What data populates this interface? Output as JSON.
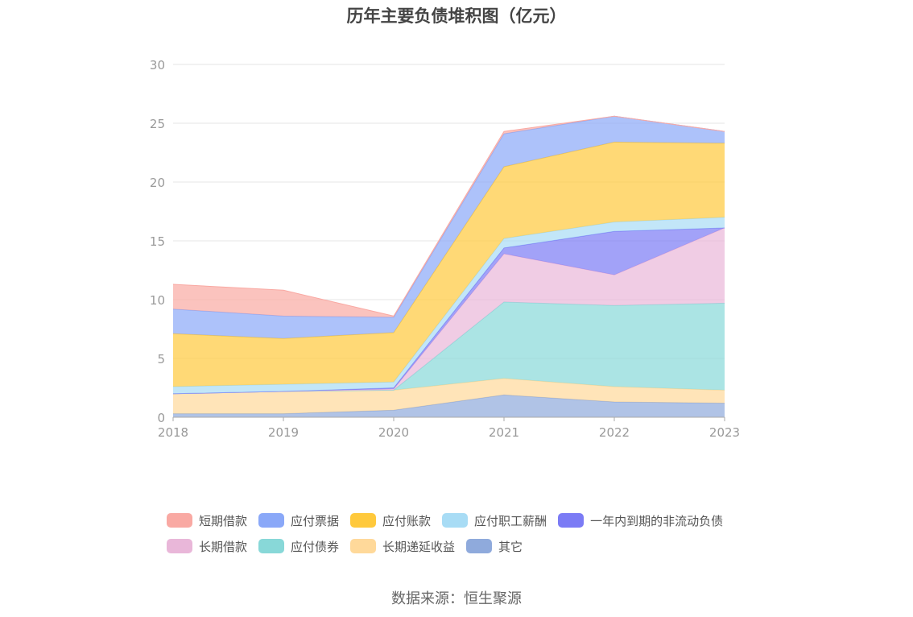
{
  "chart_data": {
    "type": "area",
    "stacked": true,
    "title": "历年主要负债堆积图（亿元）",
    "xlabel": "",
    "ylabel": "",
    "categories": [
      "2018",
      "2019",
      "2020",
      "2021",
      "2022",
      "2023"
    ],
    "ylim": [
      0,
      30
    ],
    "yticks": [
      0,
      5,
      10,
      15,
      20,
      25,
      30
    ],
    "grid": true,
    "legend_position": "bottom",
    "series": [
      {
        "name": "其它",
        "color": "#8FAADC",
        "values": [
          0.3,
          0.3,
          0.6,
          1.9,
          1.3,
          1.2
        ]
      },
      {
        "name": "长期递延收益",
        "color": "#FFD99A",
        "values": [
          1.7,
          1.9,
          1.7,
          1.4,
          1.3,
          1.1
        ]
      },
      {
        "name": "应付债券",
        "color": "#88D8D8",
        "values": [
          0.0,
          0.0,
          0.0,
          6.5,
          6.9,
          7.4
        ]
      },
      {
        "name": "长期借款",
        "color": "#E9B7D9",
        "values": [
          0.0,
          0.0,
          0.1,
          4.1,
          2.6,
          6.4
        ]
      },
      {
        "name": "一年内到期的非流动负债",
        "color": "#7B7BF5",
        "values": [
          0.0,
          0.0,
          0.1,
          0.5,
          3.7,
          0.0
        ]
      },
      {
        "name": "应付职工薪酬",
        "color": "#A8DCF5",
        "values": [
          0.6,
          0.6,
          0.5,
          0.8,
          0.8,
          0.9
        ]
      },
      {
        "name": "应付账款",
        "color": "#FFC93C",
        "values": [
          4.5,
          3.9,
          4.2,
          6.1,
          6.8,
          6.3
        ]
      },
      {
        "name": "应付票据",
        "color": "#8AA8F8",
        "values": [
          2.1,
          1.9,
          1.3,
          2.8,
          2.2,
          1.0
        ]
      },
      {
        "name": "短期借款",
        "color": "#F9A9A3",
        "values": [
          2.1,
          2.2,
          0.1,
          0.2,
          0.0,
          0.0
        ]
      }
    ]
  },
  "legend": [
    [
      {
        "name": "短期借款",
        "color": "#F9A9A3"
      },
      {
        "name": "应付票据",
        "color": "#8AA8F8"
      },
      {
        "name": "应付账款",
        "color": "#FFC93C"
      },
      {
        "name": "应付职工薪酬",
        "color": "#A8DCF5"
      },
      {
        "name": "一年内到期的非流动负债",
        "color": "#7B7BF5"
      }
    ],
    [
      {
        "name": "长期借款",
        "color": "#E9B7D9"
      },
      {
        "name": "应付债券",
        "color": "#88D8D8"
      },
      {
        "name": "长期递延收益",
        "color": "#FFD99A"
      },
      {
        "name": "其它",
        "color": "#8FAADC"
      }
    ]
  ],
  "source": "数据来源：恒生聚源"
}
